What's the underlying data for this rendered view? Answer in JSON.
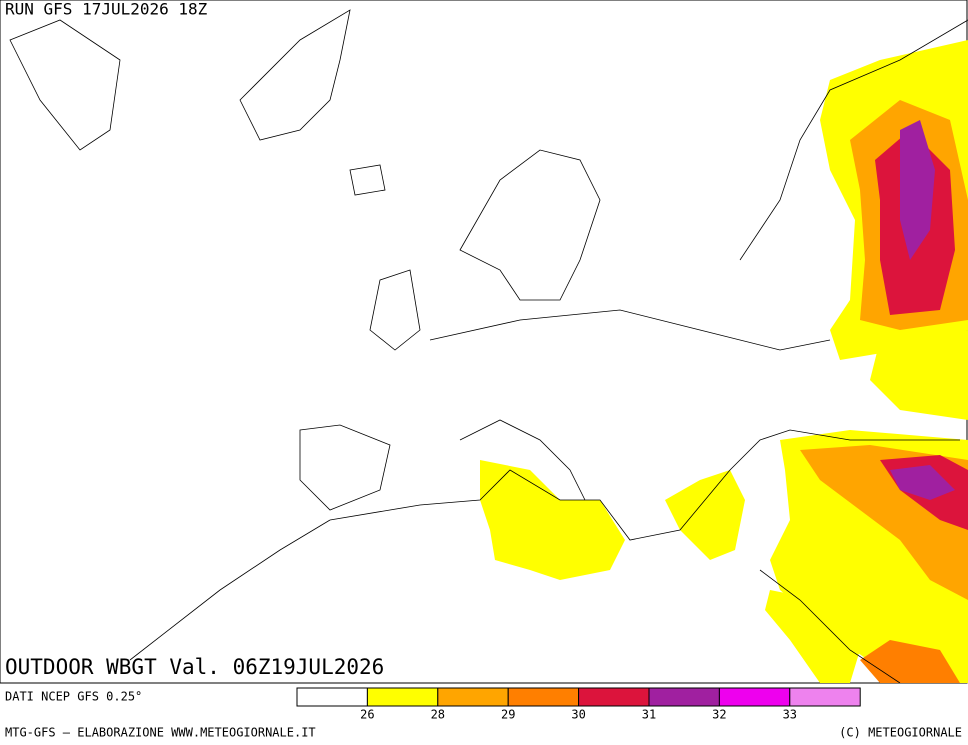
{
  "header": {
    "run": "RUN GFS 17JUL2026 18Z",
    "title": "OUTDOOR WBGT Val. 06Z19JUL2026"
  },
  "source": "DATI NCEP GFS 0.25°",
  "legend": {
    "colors": [
      "#ffffff",
      "#ffff00",
      "#ffa500",
      "#ff7f00",
      "#dc143c",
      "#a020a0",
      "#ee00ee",
      "#ee82ee"
    ],
    "thresholds": [
      26,
      28,
      29,
      30,
      31,
      32,
      33
    ]
  },
  "footer": {
    "left": "MTG-GFS — ELABORAZIONE WWW.METEOGIORNALE.IT",
    "right": "(C) METEOGIORNALE"
  }
}
